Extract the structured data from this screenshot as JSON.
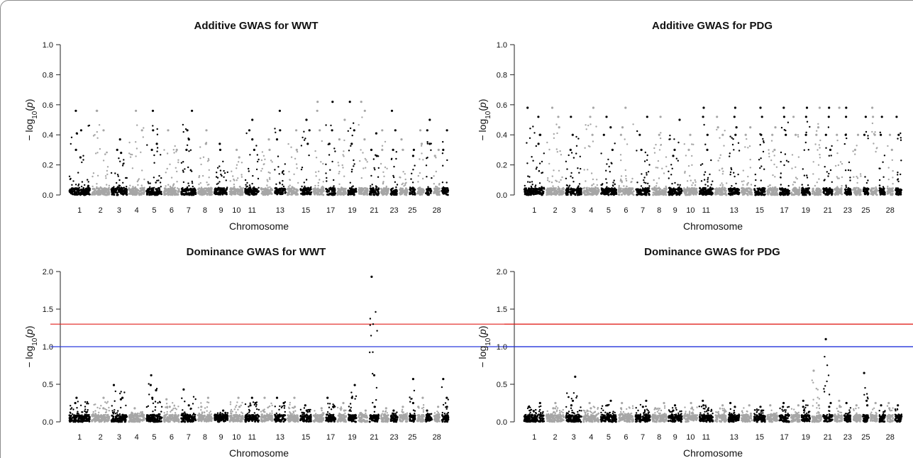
{
  "chart_data": [
    {
      "type": "scatter",
      "title": "Additive GWAS for WWT",
      "xlabel": "Chromosome",
      "ylabel": "−log10(p)",
      "ylim": [
        0,
        1.0
      ],
      "yticks": [
        "0.0",
        "0.2",
        "0.4",
        "0.6",
        "0.8",
        "1.0"
      ],
      "xtick_labels": [
        "1",
        "2",
        "3",
        "4",
        "5",
        "6",
        "7",
        "8",
        "9",
        "10",
        "11",
        "13",
        "15",
        "17",
        "19",
        "21",
        "23",
        "25",
        "28"
      ],
      "thresholds": [],
      "colors": {
        "odd": "#000000",
        "even": "#a6a6a6"
      },
      "series": [
        {
          "chromosome": 1,
          "max": 0.56,
          "peaks": [
            0.41,
            0.43,
            0.25,
            0.56,
            0.3
          ]
        },
        {
          "chromosome": 2,
          "max": 0.56,
          "peaks": [
            0.56,
            0.43,
            0.56
          ]
        },
        {
          "chromosome": 3,
          "max": 0.37,
          "peaks": [
            0.37,
            0.3,
            0.28
          ]
        },
        {
          "chromosome": 4,
          "max": 0.56,
          "peaks": [
            0.56,
            0.43
          ]
        },
        {
          "chromosome": 5,
          "max": 0.56,
          "peaks": [
            0.43,
            0.56,
            0.34,
            0.3
          ]
        },
        {
          "chromosome": 6,
          "max": 0.43,
          "peaks": [
            0.43,
            0.3
          ]
        },
        {
          "chromosome": 7,
          "max": 0.56,
          "peaks": [
            0.43,
            0.56,
            0.37,
            0.3
          ]
        },
        {
          "chromosome": 8,
          "max": 0.43,
          "peaks": [
            0.43,
            0.34
          ]
        },
        {
          "chromosome": 9,
          "max": 0.34,
          "peaks": [
            0.34,
            0.3
          ]
        },
        {
          "chromosome": 10,
          "max": 0.3,
          "peaks": [
            0.3,
            0.25
          ]
        },
        {
          "chromosome": 11,
          "max": 0.5,
          "peaks": [
            0.43,
            0.5,
            0.37,
            0.3
          ]
        },
        {
          "chromosome": 12,
          "max": 0.37,
          "peaks": [
            0.37,
            0.3
          ]
        },
        {
          "chromosome": 13,
          "max": 0.56,
          "peaks": [
            0.56,
            0.43,
            0.37
          ]
        },
        {
          "chromosome": 14,
          "max": 0.43,
          "peaks": [
            0.43,
            0.3
          ]
        },
        {
          "chromosome": 15,
          "max": 0.5,
          "peaks": [
            0.43,
            0.5,
            0.34
          ]
        },
        {
          "chromosome": 16,
          "max": 0.62,
          "peaks": [
            0.62,
            0.56,
            0.43
          ]
        },
        {
          "chromosome": 17,
          "max": 0.62,
          "peaks": [
            0.62,
            0.43,
            0.34
          ]
        },
        {
          "chromosome": 18,
          "max": 0.5,
          "peaks": [
            0.5,
            0.37
          ]
        },
        {
          "chromosome": 19,
          "max": 0.62,
          "peaks": [
            0.62,
            0.43,
            0.34
          ]
        },
        {
          "chromosome": 20,
          "max": 0.62,
          "peaks": [
            0.62,
            0.56,
            0.37
          ]
        },
        {
          "chromosome": 21,
          "max": 0.41,
          "peaks": [
            0.41,
            0.3,
            0.26
          ]
        },
        {
          "chromosome": 22,
          "max": 0.43,
          "peaks": [
            0.43,
            0.3
          ]
        },
        {
          "chromosome": 23,
          "max": 0.56,
          "peaks": [
            0.56,
            0.43,
            0.3
          ]
        },
        {
          "chromosome": 24,
          "max": 0.37,
          "peaks": [
            0.37,
            0.3
          ]
        },
        {
          "chromosome": 25,
          "max": 0.3,
          "peaks": [
            0.3,
            0.26
          ]
        },
        {
          "chromosome": 26,
          "max": 0.43,
          "peaks": [
            0.43,
            0.34
          ]
        },
        {
          "chromosome": 27,
          "max": 0.5,
          "peaks": [
            0.5,
            0.43,
            0.34
          ]
        },
        {
          "chromosome": 28,
          "max": 0.3,
          "peaks": [
            0.3,
            0.26
          ]
        },
        {
          "chromosome": 29,
          "max": 0.43,
          "peaks": [
            0.43,
            0.3
          ]
        }
      ]
    },
    {
      "type": "scatter",
      "title": "Additive GWAS for PDG",
      "xlabel": "Chromosome",
      "ylabel": "−log10(p)",
      "ylim": [
        0,
        1.0
      ],
      "yticks": [
        "0.0",
        "0.2",
        "0.4",
        "0.6",
        "0.8",
        "1.0"
      ],
      "xtick_labels": [
        "1",
        "2",
        "3",
        "4",
        "5",
        "6",
        "7",
        "8",
        "9",
        "10",
        "11",
        "13",
        "15",
        "17",
        "19",
        "21",
        "23",
        "25",
        "28"
      ],
      "thresholds": [],
      "colors": {
        "odd": "#000000",
        "even": "#a6a6a6"
      },
      "series": [
        {
          "chromosome": 1,
          "max": 0.58,
          "peaks": [
            0.4,
            0.58,
            0.52,
            0.4,
            0.34
          ]
        },
        {
          "chromosome": 2,
          "max": 0.58,
          "peaks": [
            0.52,
            0.58,
            0.45
          ]
        },
        {
          "chromosome": 3,
          "max": 0.52,
          "peaks": [
            0.52,
            0.4,
            0.3
          ]
        },
        {
          "chromosome": 4,
          "max": 0.58,
          "peaks": [
            0.58,
            0.52,
            0.4
          ]
        },
        {
          "chromosome": 5,
          "max": 0.52,
          "peaks": [
            0.52,
            0.45,
            0.4,
            0.3
          ]
        },
        {
          "chromosome": 6,
          "max": 0.58,
          "peaks": [
            0.58,
            0.45,
            0.4
          ]
        },
        {
          "chromosome": 7,
          "max": 0.52,
          "peaks": [
            0.4,
            0.52,
            0.3
          ]
        },
        {
          "chromosome": 8,
          "max": 0.52,
          "peaks": [
            0.52,
            0.4
          ]
        },
        {
          "chromosome": 9,
          "max": 0.5,
          "peaks": [
            0.5,
            0.3,
            0.26
          ]
        },
        {
          "chromosome": 10,
          "max": 0.4,
          "peaks": [
            0.4,
            0.3
          ]
        },
        {
          "chromosome": 11,
          "max": 0.58,
          "peaks": [
            0.58,
            0.52,
            0.4,
            0.3
          ]
        },
        {
          "chromosome": 12,
          "max": 0.52,
          "peaks": [
            0.52,
            0.45,
            0.4
          ]
        },
        {
          "chromosome": 13,
          "max": 0.58,
          "peaks": [
            0.58,
            0.52,
            0.45,
            0.4
          ]
        },
        {
          "chromosome": 14,
          "max": 0.45,
          "peaks": [
            0.45,
            0.4
          ]
        },
        {
          "chromosome": 15,
          "max": 0.58,
          "peaks": [
            0.58,
            0.52,
            0.4
          ]
        },
        {
          "chromosome": 16,
          "max": 0.45,
          "peaks": [
            0.45,
            0.4,
            0.3
          ]
        },
        {
          "chromosome": 17,
          "max": 0.58,
          "peaks": [
            0.58,
            0.52,
            0.4
          ]
        },
        {
          "chromosome": 18,
          "max": 0.52,
          "peaks": [
            0.52,
            0.4
          ]
        },
        {
          "chromosome": 19,
          "max": 0.58,
          "peaks": [
            0.58,
            0.52,
            0.4
          ]
        },
        {
          "chromosome": 20,
          "max": 0.58,
          "peaks": [
            0.58,
            0.45,
            0.4
          ]
        },
        {
          "chromosome": 21,
          "max": 0.58,
          "peaks": [
            0.58,
            0.52,
            0.4,
            0.3
          ]
        },
        {
          "chromosome": 22,
          "max": 0.58,
          "peaks": [
            0.58,
            0.4
          ]
        },
        {
          "chromosome": 23,
          "max": 0.58,
          "peaks": [
            0.58,
            0.52,
            0.4
          ]
        },
        {
          "chromosome": 24,
          "max": 0.4,
          "peaks": [
            0.4,
            0.3
          ]
        },
        {
          "chromosome": 25,
          "max": 0.52,
          "peaks": [
            0.52,
            0.4
          ]
        },
        {
          "chromosome": 26,
          "max": 0.58,
          "peaks": [
            0.58,
            0.52,
            0.4
          ]
        },
        {
          "chromosome": 27,
          "max": 0.52,
          "peaks": [
            0.52,
            0.4
          ]
        },
        {
          "chromosome": 28,
          "max": 0.4,
          "peaks": [
            0.4,
            0.3
          ]
        },
        {
          "chromosome": 29,
          "max": 0.52,
          "peaks": [
            0.52,
            0.4
          ]
        }
      ]
    },
    {
      "type": "scatter",
      "title": "Dominance GWAS for WWT",
      "xlabel": "Chromosome",
      "ylabel": "−log10(p)",
      "ylim": [
        0,
        2.0
      ],
      "yticks": [
        "0.0",
        "0.5",
        "1.0",
        "1.5",
        "2.0"
      ],
      "xtick_labels": [
        "1",
        "2",
        "3",
        "4",
        "5",
        "6",
        "7",
        "8",
        "9",
        "10",
        "11",
        "13",
        "15",
        "17",
        "19",
        "21",
        "23",
        "25",
        "28"
      ],
      "thresholds": [
        {
          "value": 1.3,
          "color": "#e0201b"
        },
        {
          "value": 1.0,
          "color": "#2b3bdc"
        }
      ],
      "colors": {
        "odd": "#000000",
        "even": "#a6a6a6"
      },
      "series": [
        {
          "chromosome": 1,
          "max": 0.32,
          "peaks": [
            0.32,
            0.25
          ]
        },
        {
          "chromosome": 2,
          "max": 0.32,
          "peaks": [
            0.32,
            0.18
          ]
        },
        {
          "chromosome": 3,
          "max": 0.49,
          "peaks": [
            0.49,
            0.32,
            0.3
          ]
        },
        {
          "chromosome": 4,
          "max": 0.18,
          "peaks": [
            0.18
          ]
        },
        {
          "chromosome": 5,
          "max": 0.62,
          "peaks": [
            0.49,
            0.42,
            0.32,
            0.62
          ]
        },
        {
          "chromosome": 6,
          "max": 0.3,
          "peaks": [
            0.3,
            0.2
          ]
        },
        {
          "chromosome": 7,
          "max": 0.43,
          "peaks": [
            0.43,
            0.22
          ]
        },
        {
          "chromosome": 8,
          "max": 0.32,
          "peaks": [
            0.32,
            0.2
          ]
        },
        {
          "chromosome": 9,
          "max": 0.15,
          "peaks": [
            0.15,
            0.12
          ]
        },
        {
          "chromosome": 10,
          "max": 0.32,
          "peaks": [
            0.32,
            0.2
          ]
        },
        {
          "chromosome": 11,
          "max": 0.32,
          "peaks": [
            0.32,
            0.25,
            0.22
          ]
        },
        {
          "chromosome": 12,
          "max": 0.32,
          "peaks": [
            0.32,
            0.15
          ]
        },
        {
          "chromosome": 13,
          "max": 0.32,
          "peaks": [
            0.32,
            0.25
          ]
        },
        {
          "chromosome": 14,
          "max": 0.32,
          "peaks": [
            0.32,
            0.2
          ]
        },
        {
          "chromosome": 15,
          "max": 0.22,
          "peaks": [
            0.22,
            0.15
          ]
        },
        {
          "chromosome": 16,
          "max": 0.18,
          "peaks": [
            0.18
          ]
        },
        {
          "chromosome": 17,
          "max": 0.32,
          "peaks": [
            0.32,
            0.2
          ]
        },
        {
          "chromosome": 18,
          "max": 0.25,
          "peaks": [
            0.25,
            0.15
          ]
        },
        {
          "chromosome": 19,
          "max": 0.49,
          "peaks": [
            0.49,
            0.32
          ]
        },
        {
          "chromosome": 20,
          "max": 0.15,
          "peaks": [
            0.15
          ]
        },
        {
          "chromosome": 21,
          "max": 1.93,
          "peaks": [
            1.93,
            0.62,
            0.2
          ]
        },
        {
          "chromosome": 22,
          "max": 0.18,
          "peaks": [
            0.18
          ]
        },
        {
          "chromosome": 23,
          "max": 0.15,
          "peaks": [
            0.15
          ]
        },
        {
          "chromosome": 24,
          "max": 0.2,
          "peaks": [
            0.2
          ]
        },
        {
          "chromosome": 25,
          "max": 0.57,
          "peaks": [
            0.57,
            0.25
          ]
        },
        {
          "chromosome": 26,
          "max": 0.32,
          "peaks": [
            0.32,
            0.2
          ]
        },
        {
          "chromosome": 27,
          "max": 0.15,
          "peaks": [
            0.15
          ]
        },
        {
          "chromosome": 28,
          "max": 0.2,
          "peaks": [
            0.2
          ]
        },
        {
          "chromosome": 29,
          "max": 0.57,
          "peaks": [
            0.57,
            0.32,
            0.2
          ]
        }
      ]
    },
    {
      "type": "scatter",
      "title": "Dominance GWAS for PDG",
      "xlabel": "Chromosome",
      "ylabel": "−log10(p)",
      "ylim": [
        0,
        2.0
      ],
      "yticks": [
        "0.0",
        "0.5",
        "1.0",
        "1.5",
        "2.0"
      ],
      "xtick_labels": [
        "1",
        "2",
        "3",
        "4",
        "5",
        "6",
        "7",
        "8",
        "9",
        "10",
        "11",
        "13",
        "15",
        "17",
        "19",
        "21",
        "23",
        "25",
        "28"
      ],
      "thresholds": [
        {
          "value": 1.3,
          "color": "#e0201b"
        },
        {
          "value": 1.0,
          "color": "#2b3bdc"
        }
      ],
      "colors": {
        "odd": "#000000",
        "even": "#a6a6a6"
      },
      "series": [
        {
          "chromosome": 1,
          "max": 0.25,
          "peaks": [
            0.25,
            0.2
          ]
        },
        {
          "chromosome": 2,
          "max": 0.25,
          "peaks": [
            0.25,
            0.18
          ]
        },
        {
          "chromosome": 3,
          "max": 0.6,
          "peaks": [
            0.6,
            0.28,
            0.22
          ]
        },
        {
          "chromosome": 4,
          "max": 0.25,
          "peaks": [
            0.25,
            0.18
          ]
        },
        {
          "chromosome": 5,
          "max": 0.28,
          "peaks": [
            0.28,
            0.22
          ]
        },
        {
          "chromosome": 6,
          "max": 0.25,
          "peaks": [
            0.25,
            0.18
          ]
        },
        {
          "chromosome": 7,
          "max": 0.28,
          "peaks": [
            0.28,
            0.2
          ]
        },
        {
          "chromosome": 8,
          "max": 0.25,
          "peaks": [
            0.25,
            0.18
          ]
        },
        {
          "chromosome": 9,
          "max": 0.22,
          "peaks": [
            0.22,
            0.15
          ]
        },
        {
          "chromosome": 10,
          "max": 0.25,
          "peaks": [
            0.25,
            0.18
          ]
        },
        {
          "chromosome": 11,
          "max": 0.28,
          "peaks": [
            0.28,
            0.22
          ]
        },
        {
          "chromosome": 12,
          "max": 0.22,
          "peaks": [
            0.22
          ]
        },
        {
          "chromosome": 13,
          "max": 0.25,
          "peaks": [
            0.25,
            0.2
          ]
        },
        {
          "chromosome": 14,
          "max": 0.22,
          "peaks": [
            0.22
          ]
        },
        {
          "chromosome": 15,
          "max": 0.2,
          "peaks": [
            0.2,
            0.15
          ]
        },
        {
          "chromosome": 16,
          "max": 0.22,
          "peaks": [
            0.22
          ]
        },
        {
          "chromosome": 17,
          "max": 0.25,
          "peaks": [
            0.25,
            0.2
          ]
        },
        {
          "chromosome": 18,
          "max": 0.22,
          "peaks": [
            0.22
          ]
        },
        {
          "chromosome": 19,
          "max": 0.28,
          "peaks": [
            0.28,
            0.2
          ]
        },
        {
          "chromosome": 20,
          "max": 0.68,
          "peaks": [
            0.68,
            0.22
          ]
        },
        {
          "chromosome": 21,
          "max": 1.1,
          "peaks": [
            1.1,
            0.25,
            0.2
          ]
        },
        {
          "chromosome": 22,
          "max": 0.28,
          "peaks": [
            0.28,
            0.2
          ]
        },
        {
          "chromosome": 23,
          "max": 0.25,
          "peaks": [
            0.25
          ]
        },
        {
          "chromosome": 24,
          "max": 0.22,
          "peaks": [
            0.22
          ]
        },
        {
          "chromosome": 25,
          "max": 0.65,
          "peaks": [
            0.65,
            0.28,
            0.22
          ]
        },
        {
          "chromosome": 26,
          "max": 0.25,
          "peaks": [
            0.25
          ]
        },
        {
          "chromosome": 27,
          "max": 0.22,
          "peaks": [
            0.22
          ]
        },
        {
          "chromosome": 28,
          "max": 0.25,
          "peaks": [
            0.25,
            0.18
          ]
        },
        {
          "chromosome": 29,
          "max": 0.22,
          "peaks": [
            0.22
          ]
        }
      ]
    }
  ]
}
